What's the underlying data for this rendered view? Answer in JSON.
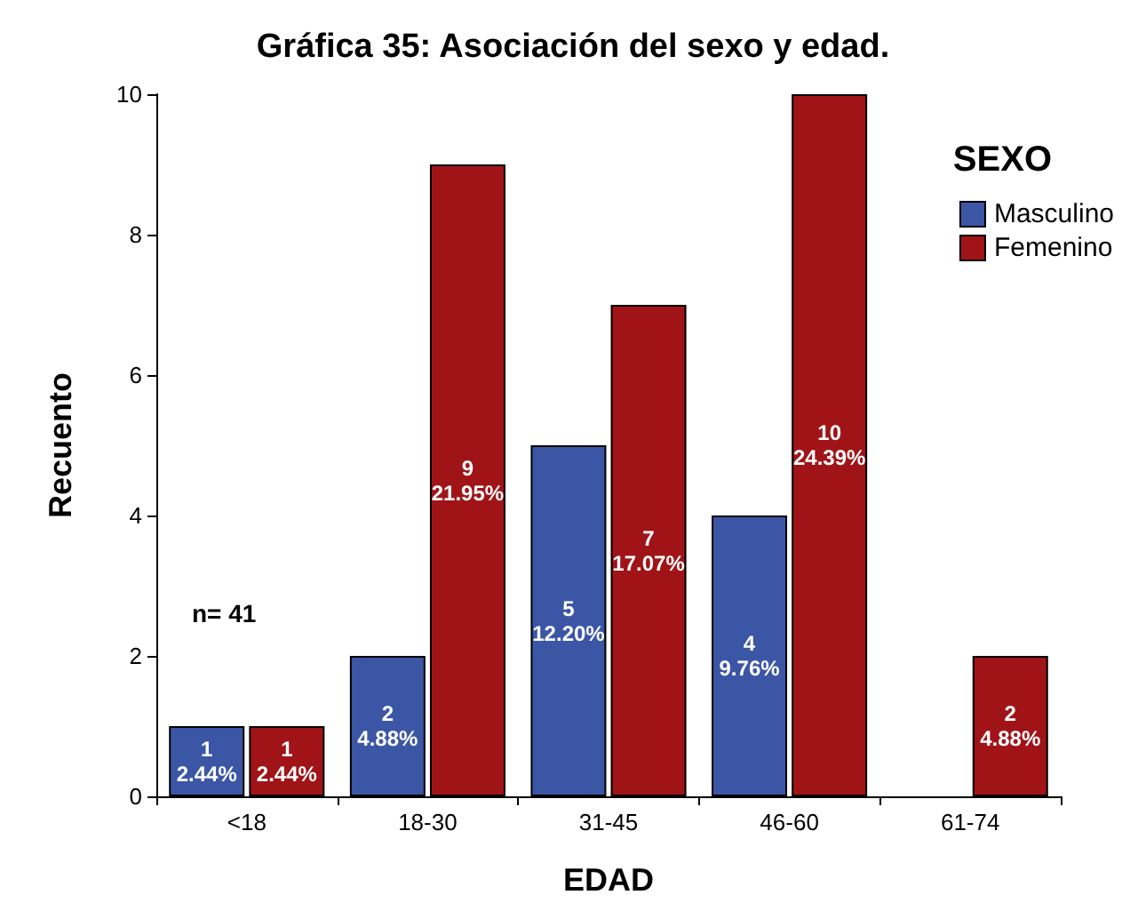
{
  "chart_data": {
    "type": "bar",
    "title": "Gráfica 35: Asociación del sexo y edad.",
    "xlabel": "EDAD",
    "ylabel": "Recuento",
    "legend_title": "SEXO",
    "legend": "top right",
    "categories": [
      "<18",
      "18-30",
      "31-45",
      "46-60",
      "61-74"
    ],
    "series": [
      {
        "name": "Masculino",
        "color": "#3c56a6",
        "values": [
          1,
          2,
          5,
          4,
          null
        ],
        "value_labels": [
          "1\n2.44%",
          "2\n4.88%",
          "5\n12.20%",
          "4\n9.76%",
          null
        ]
      },
      {
        "name": "Femenino",
        "color": "#a01418",
        "values": [
          1,
          9,
          7,
          10,
          2
        ],
        "value_labels": [
          "1\n2.44%",
          "9\n21.95%",
          "7\n17.07%",
          "10\n24.39%",
          "2\n4.88%"
        ]
      }
    ],
    "ylim": [
      0,
      10
    ],
    "yticks": [
      0,
      2,
      4,
      6,
      8,
      10
    ],
    "grid": false,
    "annotations": [
      "n= 41"
    ]
  }
}
